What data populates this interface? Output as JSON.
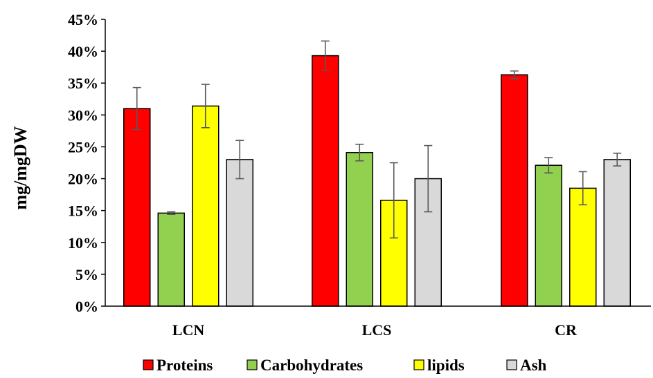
{
  "chart_data": {
    "type": "bar",
    "title": "",
    "xlabel": "",
    "ylabel": "mg/mgDW",
    "ylim": [
      0,
      45
    ],
    "y_ticks": [
      0,
      5,
      10,
      15,
      20,
      25,
      30,
      35,
      40,
      45
    ],
    "y_tick_labels": [
      "0%",
      "5%",
      "10%",
      "15%",
      "20%",
      "25%",
      "30%",
      "35%",
      "40%",
      "45%"
    ],
    "categories": [
      "LCN",
      "LCS",
      "CR"
    ],
    "grid": false,
    "legend_position": "bottom",
    "series": [
      {
        "name": "Proteins",
        "color": "#ff0000",
        "values": [
          31.0,
          39.3,
          36.3
        ],
        "errors": [
          3.3,
          2.3,
          0.6
        ]
      },
      {
        "name": "Carbohydrates",
        "color": "#92d050",
        "values": [
          14.6,
          24.1,
          22.1
        ],
        "errors": [
          0.2,
          1.3,
          1.2
        ]
      },
      {
        "name": "lipids",
        "color": "#ffff00",
        "values": [
          31.4,
          16.6,
          18.5
        ],
        "errors": [
          3.4,
          5.9,
          2.6
        ]
      },
      {
        "name": "Ash",
        "color": "#d9d9d9",
        "values": [
          23.0,
          20.0,
          23.0
        ],
        "errors": [
          3.0,
          5.2,
          1.0
        ]
      }
    ]
  }
}
